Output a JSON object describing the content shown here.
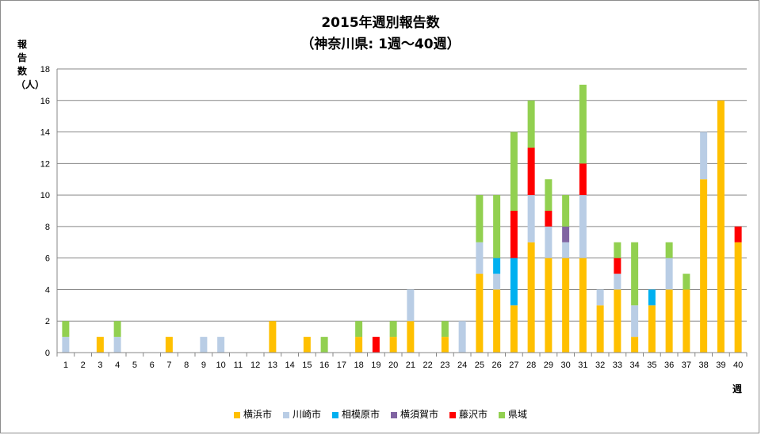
{
  "chart_data": {
    "type": "bar",
    "stacked": true,
    "title": "2015年週別報告数",
    "subtitle": "（神奈川県: 1週〜40週）",
    "xlabel": "週",
    "ylabel": "報告数（人）",
    "ylim": [
      0,
      18
    ],
    "yticks": [
      0,
      2,
      4,
      6,
      8,
      10,
      12,
      14,
      16,
      18
    ],
    "grid": true,
    "legend_position": "bottom",
    "categories": [
      "1",
      "2",
      "3",
      "4",
      "5",
      "6",
      "7",
      "8",
      "9",
      "10",
      "11",
      "12",
      "13",
      "14",
      "15",
      "16",
      "17",
      "18",
      "19",
      "20",
      "21",
      "22",
      "23",
      "24",
      "25",
      "26",
      "27",
      "28",
      "29",
      "30",
      "31",
      "32",
      "33",
      "34",
      "35",
      "36",
      "37",
      "38",
      "39",
      "40"
    ],
    "series": [
      {
        "name": "横浜市",
        "color": "#FFC000",
        "values": [
          0,
          0,
          1,
          0,
          0,
          0,
          1,
          0,
          0,
          0,
          0,
          0,
          2,
          0,
          1,
          0,
          0,
          1,
          0,
          1,
          2,
          0,
          1,
          0,
          5,
          4,
          3,
          7,
          6,
          6,
          6,
          3,
          4,
          1,
          3,
          4,
          4,
          11,
          16,
          7
        ]
      },
      {
        "name": "川崎市",
        "color": "#B9CDE5",
        "values": [
          1,
          0,
          0,
          1,
          0,
          0,
          0,
          0,
          1,
          1,
          0,
          0,
          0,
          0,
          0,
          0,
          0,
          0,
          0,
          0,
          2,
          0,
          0,
          2,
          2,
          1,
          0,
          3,
          2,
          1,
          4,
          1,
          1,
          2,
          0,
          2,
          0,
          3,
          0,
          0
        ]
      },
      {
        "name": "相模原市",
        "color": "#00B0F0",
        "values": [
          0,
          0,
          0,
          0,
          0,
          0,
          0,
          0,
          0,
          0,
          0,
          0,
          0,
          0,
          0,
          0,
          0,
          0,
          0,
          0,
          0,
          0,
          0,
          0,
          0,
          1,
          3,
          0,
          0,
          0,
          0,
          0,
          0,
          0,
          1,
          0,
          0,
          0,
          0,
          0
        ]
      },
      {
        "name": "横須賀市",
        "color": "#8064A2",
        "values": [
          0,
          0,
          0,
          0,
          0,
          0,
          0,
          0,
          0,
          0,
          0,
          0,
          0,
          0,
          0,
          0,
          0,
          0,
          0,
          0,
          0,
          0,
          0,
          0,
          0,
          0,
          0,
          0,
          0,
          1,
          0,
          0,
          0,
          0,
          0,
          0,
          0,
          0,
          0,
          0
        ]
      },
      {
        "name": "藤沢市",
        "color": "#FF0000",
        "values": [
          0,
          0,
          0,
          0,
          0,
          0,
          0,
          0,
          0,
          0,
          0,
          0,
          0,
          0,
          0,
          0,
          0,
          0,
          1,
          0,
          0,
          0,
          0,
          0,
          0,
          0,
          3,
          3,
          1,
          0,
          2,
          0,
          1,
          0,
          0,
          0,
          0,
          0,
          0,
          1
        ]
      },
      {
        "name": "県域",
        "color": "#92D050",
        "values": [
          1,
          0,
          0,
          1,
          0,
          0,
          0,
          0,
          0,
          0,
          0,
          0,
          0,
          0,
          0,
          1,
          0,
          1,
          0,
          1,
          0,
          0,
          1,
          0,
          3,
          4,
          5,
          3,
          2,
          2,
          5,
          0,
          1,
          4,
          0,
          1,
          1,
          0,
          0,
          0
        ]
      }
    ]
  }
}
